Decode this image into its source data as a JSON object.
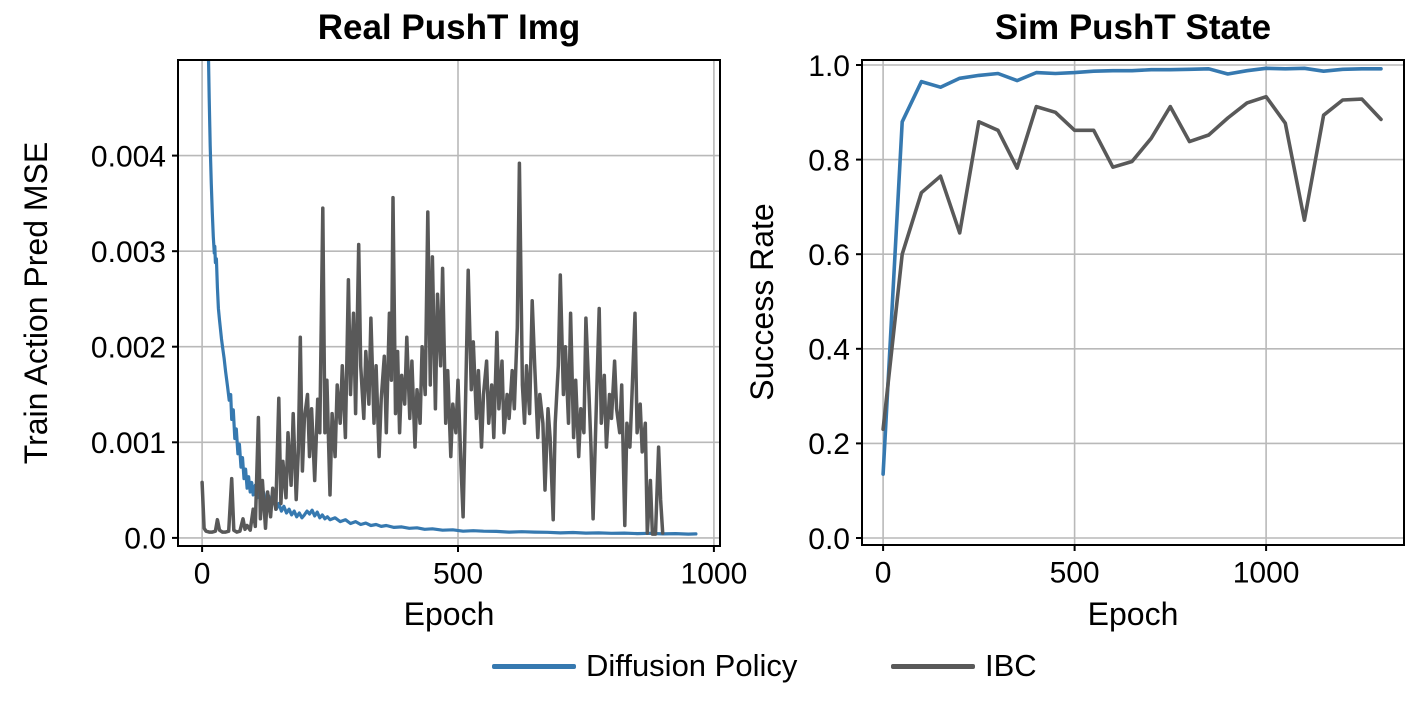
{
  "figure": {
    "background": "#ffffff",
    "grid_color": "#b9b9b9",
    "spine_color": "#000000"
  },
  "legend": {
    "position": "bottom-center",
    "entries": [
      {
        "label": "Diffusion Policy",
        "color": "#3679b0"
      },
      {
        "label": "IBC",
        "color": "#595959"
      }
    ]
  },
  "chart_data": [
    {
      "type": "line",
      "title": "Real PushT Img",
      "xlabel": "Epoch",
      "ylabel": "Train Action Pred MSE",
      "xlim": [
        -47,
        1012
      ],
      "ylim": [
        -8.5e-05,
        0.005
      ],
      "xticks": [
        0,
        500,
        1000
      ],
      "xtick_labels": [
        "0",
        "500",
        "1000"
      ],
      "yticks": [
        0.0,
        0.001,
        0.002,
        0.003,
        0.004
      ],
      "ytick_labels": [
        "0.0",
        "0.001",
        "0.002",
        "0.003",
        "0.004"
      ],
      "grid": true,
      "series": [
        {
          "name": "Diffusion Policy",
          "color": "#3679b0",
          "width": 3.2,
          "x": [
            2,
            4,
            6,
            8,
            10,
            12,
            14,
            16,
            18,
            20,
            22,
            24,
            25,
            26,
            28,
            30,
            32,
            34,
            36,
            38,
            40,
            43,
            46,
            50,
            53,
            56,
            58,
            61,
            64,
            67,
            70,
            73,
            76,
            79,
            82,
            85,
            88,
            91,
            94,
            97,
            100,
            104,
            108,
            112,
            116,
            120,
            125,
            130,
            135,
            140,
            145,
            150,
            155,
            160,
            165,
            170,
            175,
            180,
            185,
            190,
            195,
            200,
            205,
            210,
            215,
            220,
            225,
            230,
            235,
            240,
            245,
            250,
            260,
            270,
            280,
            290,
            300,
            310,
            320,
            330,
            340,
            350,
            360,
            375,
            390,
            405,
            420,
            435,
            450,
            470,
            490,
            510,
            530,
            550,
            575,
            600,
            625,
            650,
            675,
            700,
            725,
            750,
            775,
            800,
            825,
            850,
            875,
            900,
            925,
            950,
            965
          ],
          "y": [
            0.012,
            0.01,
            0.0085,
            0.0072,
            0.006,
            0.0052,
            0.0046,
            0.0041,
            0.0037,
            0.0034,
            0.00315,
            0.00298,
            0.00305,
            0.00288,
            0.00292,
            0.00262,
            0.0024,
            0.00228,
            0.00218,
            0.00208,
            0.002,
            0.00188,
            0.00174,
            0.00158,
            0.00144,
            0.0015,
            0.00124,
            0.00134,
            0.00104,
            0.00114,
            0.00088,
            0.00098,
            0.00074,
            0.00084,
            0.00062,
            0.00072,
            0.00052,
            0.00064,
            0.00048,
            0.00058,
            0.00045,
            0.00055,
            0.00042,
            0.0005,
            0.00038,
            0.00048,
            0.00036,
            0.00044,
            0.00033,
            0.0004,
            0.0003,
            0.00036,
            0.00028,
            0.00033,
            0.00026,
            0.0003,
            0.00024,
            0.00028,
            0.00022,
            0.00026,
            0.00021,
            0.00024,
            0.00028,
            0.00025,
            0.00029,
            0.00023,
            0.00027,
            0.00021,
            0.00024,
            0.0002,
            0.00022,
            0.00019,
            0.00021,
            0.00017,
            0.00019,
            0.00015,
            0.00017,
            0.00014,
            0.000155,
            0.00013,
            0.00014,
            0.00012,
            0.00013,
            0.00011,
            0.000115,
            0.0001,
            0.000105,
            9e-05,
            9.5e-05,
            8e-05,
            8.5e-05,
            7e-05,
            7.5e-05,
            7e-05,
            6.8e-05,
            6e-05,
            6.5e-05,
            6e-05,
            5.8e-05,
            5.2e-05,
            5.6e-05,
            5e-05,
            5.2e-05,
            4.8e-05,
            5e-05,
            4.5e-05,
            4.8e-05,
            4.2e-05,
            4.5e-05,
            4e-05,
            4.2e-05
          ]
        },
        {
          "name": "IBC",
          "color": "#595959",
          "width": 3.5,
          "x": [
            0,
            4,
            8,
            14,
            20,
            26,
            30,
            34,
            40,
            46,
            52,
            58,
            62,
            68,
            74,
            80,
            84,
            88,
            94,
            100,
            104,
            110,
            114,
            118,
            124,
            128,
            134,
            138,
            144,
            150,
            154,
            158,
            164,
            168,
            174,
            178,
            184,
            188,
            192,
            196,
            200,
            206,
            210,
            214,
            220,
            226,
            230,
            236,
            240,
            244,
            250,
            254,
            260,
            264,
            270,
            274,
            280,
            286,
            290,
            296,
            300,
            306,
            310,
            316,
            320,
            326,
            330,
            336,
            340,
            346,
            350,
            356,
            360,
            366,
            370,
            373,
            378,
            382,
            386,
            390,
            396,
            400,
            406,
            410,
            416,
            420,
            426,
            430,
            436,
            441,
            446,
            450,
            456,
            460,
            466,
            470,
            476,
            480,
            486,
            490,
            496,
            500,
            506,
            510,
            514,
            520,
            526,
            530,
            536,
            540,
            546,
            550,
            556,
            560,
            566,
            570,
            576,
            580,
            586,
            590,
            596,
            600,
            606,
            610,
            616,
            620,
            626,
            630,
            634,
            640,
            645,
            650,
            656,
            660,
            666,
            670,
            676,
            680,
            686,
            690,
            696,
            700,
            706,
            710,
            716,
            720,
            726,
            730,
            736,
            740,
            746,
            750,
            756,
            760,
            764,
            770,
            776,
            780,
            786,
            790,
            796,
            800,
            806,
            810,
            816,
            820,
            826,
            830,
            836,
            840,
            846,
            850,
            856,
            860,
            866,
            870,
            876,
            880,
            886,
            892,
            896,
            900
          ],
          "y": [
            0.00058,
            0.0001,
            7e-05,
            6e-05,
            6e-05,
            7e-05,
            0.00019,
            8e-05,
            6e-05,
            6e-05,
            7e-05,
            0.00062,
            8e-05,
            6e-05,
            7e-05,
            0.0002,
            9e-05,
            0.00013,
            8e-05,
            0.0003,
            0.00012,
            0.00126,
            0.0002,
            0.0006,
            0.0001,
            0.00048,
            0.00022,
            0.00052,
            0.0003,
            0.00146,
            0.00036,
            0.0008,
            0.00042,
            0.0011,
            0.00055,
            0.0013,
            0.0004,
            0.0009,
            0.0021,
            0.0007,
            0.00125,
            0.0015,
            0.00085,
            0.00135,
            0.0006,
            0.00145,
            0.0011,
            0.00345,
            0.0011,
            0.00165,
            0.00045,
            0.0013,
            0.00085,
            0.0016,
            0.0012,
            0.0018,
            0.00105,
            0.0027,
            0.0015,
            0.00235,
            0.0013,
            0.00307,
            0.0018,
            0.00125,
            0.00195,
            0.0014,
            0.0023,
            0.0012,
            0.0018,
            0.00085,
            0.00145,
            0.0019,
            0.0011,
            0.00235,
            0.00165,
            0.00356,
            0.0013,
            0.00195,
            0.0011,
            0.0017,
            0.0014,
            0.0021,
            0.00125,
            0.00185,
            0.00095,
            0.00155,
            0.0012,
            0.002,
            0.0015,
            0.00341,
            0.0016,
            0.00294,
            0.00135,
            0.00255,
            0.0018,
            0.00282,
            0.0012,
            0.00175,
            0.00085,
            0.0014,
            0.0011,
            0.00165,
            0.00075,
            0.00022,
            0.0012,
            0.0028,
            0.00155,
            0.00205,
            0.00125,
            0.00175,
            0.00095,
            0.0015,
            0.00185,
            0.0012,
            0.0016,
            0.00105,
            0.00215,
            0.00135,
            0.00185,
            0.0011,
            0.0015,
            0.00125,
            0.00175,
            0.00135,
            0.0022,
            0.00392,
            0.0016,
            0.0012,
            0.0018,
            0.0013,
            0.00248,
            0.0018,
            0.00105,
            0.0015,
            0.0012,
            0.0005,
            0.00135,
            0.00105,
            0.00019,
            0.0012,
            0.0018,
            0.00275,
            0.0015,
            0.002,
            0.0012,
            0.00235,
            0.00105,
            0.00165,
            0.00085,
            0.00135,
            0.0011,
            0.0023,
            0.0015,
            0.00095,
            0.0002,
            0.0013,
            0.0024,
            0.0012,
            0.0017,
            0.00095,
            0.0015,
            0.00125,
            0.00185,
            0.00135,
            0.0011,
            0.0016,
            0.00013,
            0.0012,
            0.00095,
            0.0015,
            0.00235,
            0.0011,
            0.0014,
            0.0009,
            0.0012,
            5e-05,
            0.0006,
            4e-05,
            4e-05,
            0.00095,
            0.0004,
            5e-05
          ]
        }
      ]
    },
    {
      "type": "line",
      "title": "Sim PushT State",
      "xlabel": "Epoch",
      "ylabel": "Success Rate",
      "xlim": [
        -55,
        1360
      ],
      "ylim": [
        -0.0148,
        1.0106
      ],
      "xticks": [
        0,
        500,
        1000
      ],
      "xtick_labels": [
        "0",
        "500",
        "1000"
      ],
      "yticks": [
        0.0,
        0.2,
        0.4,
        0.6,
        0.8,
        1.0
      ],
      "ytick_labels": [
        "0.0",
        "0.2",
        "0.4",
        "0.6",
        "0.8",
        "1.0"
      ],
      "grid": true,
      "series": [
        {
          "name": "Diffusion Policy",
          "color": "#3679b0",
          "width": 3.6,
          "x": [
            0,
            50,
            100,
            150,
            200,
            250,
            300,
            350,
            400,
            450,
            500,
            550,
            600,
            650,
            700,
            750,
            800,
            850,
            900,
            950,
            1000,
            1050,
            1100,
            1150,
            1200,
            1250,
            1300
          ],
          "y": [
            0.135,
            0.88,
            0.965,
            0.953,
            0.972,
            0.978,
            0.982,
            0.967,
            0.984,
            0.982,
            0.984,
            0.987,
            0.988,
            0.988,
            0.99,
            0.99,
            0.991,
            0.992,
            0.981,
            0.988,
            0.993,
            0.992,
            0.993,
            0.987,
            0.991,
            0.992,
            0.992
          ]
        },
        {
          "name": "IBC",
          "color": "#595959",
          "width": 3.6,
          "x": [
            0,
            50,
            100,
            150,
            200,
            250,
            300,
            350,
            400,
            450,
            500,
            550,
            600,
            650,
            700,
            750,
            800,
            850,
            900,
            950,
            1000,
            1050,
            1100,
            1150,
            1200,
            1250,
            1300
          ],
          "y": [
            0.23,
            0.6,
            0.73,
            0.765,
            0.645,
            0.88,
            0.862,
            0.782,
            0.912,
            0.9,
            0.862,
            0.862,
            0.784,
            0.796,
            0.845,
            0.912,
            0.838,
            0.852,
            0.888,
            0.92,
            0.933,
            0.877,
            0.672,
            0.894,
            0.926,
            0.928,
            0.885
          ]
        }
      ]
    }
  ]
}
